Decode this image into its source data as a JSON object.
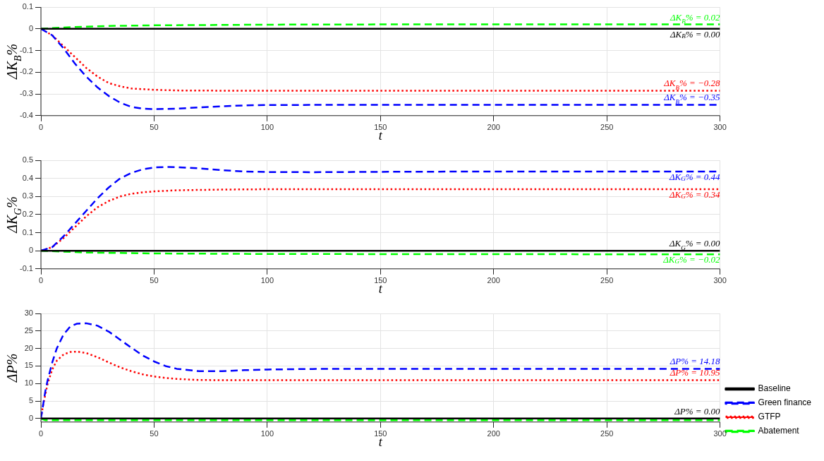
{
  "chart_data": [
    {
      "type": "line",
      "xlabel": "t",
      "ylabel": "ΔK$_{B}$%",
      "xlim": [
        0,
        300
      ],
      "xticks": [
        0,
        50,
        100,
        150,
        200,
        250,
        300
      ],
      "ylim": [
        -0.4,
        0.1
      ],
      "yticks": [
        -0.4,
        -0.3,
        -0.2,
        -0.1,
        0,
        0.1
      ],
      "grid": true,
      "legend": false,
      "series": [
        {
          "color": "#000000",
          "line_style": "solid",
          "x": [
            0,
            300
          ],
          "values": [
            0,
            0
          ]
        },
        {
          "color": "#0000ff",
          "line_style": "dashed",
          "x": [
            0,
            5,
            10,
            15,
            20,
            25,
            30,
            35,
            40,
            45,
            50,
            60,
            70,
            80,
            90,
            100,
            150,
            300
          ],
          "values": [
            0,
            -0.03,
            -0.09,
            -0.16,
            -0.22,
            -0.27,
            -0.31,
            -0.34,
            -0.36,
            -0.368,
            -0.37,
            -0.368,
            -0.362,
            -0.357,
            -0.353,
            -0.351,
            -0.35,
            -0.35
          ]
        },
        {
          "color": "#ff0000",
          "line_style": "dotted",
          "x": [
            0,
            5,
            10,
            15,
            20,
            25,
            30,
            35,
            40,
            50,
            60,
            80,
            100,
            300
          ],
          "values": [
            0,
            -0.03,
            -0.08,
            -0.13,
            -0.18,
            -0.22,
            -0.25,
            -0.265,
            -0.275,
            -0.281,
            -0.284,
            -0.285,
            -0.285,
            -0.285
          ]
        },
        {
          "color": "#00ff00",
          "line_style": "dashed",
          "x": [
            0,
            10,
            20,
            30,
            50,
            100,
            150,
            300
          ],
          "values": [
            0,
            0.006,
            0.01,
            0.013,
            0.016,
            0.019,
            0.02,
            0.02
          ]
        }
      ],
      "annotations": [
        {
          "text": "ΔK$_{B}$% = 0.02",
          "y": 0.02
        },
        {
          "text": "ΔK$_{B}$% = 0.00",
          "y": 0
        },
        {
          "text": "ΔK$_{B}$% = −0.28",
          "y": -0.285
        },
        {
          "text": "ΔK$_{B}$% = −0.35",
          "y": -0.35
        }
      ]
    },
    {
      "type": "line",
      "xlabel": "t",
      "ylabel": "ΔK$_{G}$%",
      "xlim": [
        0,
        300
      ],
      "xticks": [
        0,
        50,
        100,
        150,
        200,
        250,
        300
      ],
      "ylim": [
        -0.1,
        0.5
      ],
      "yticks": [
        -0.1,
        0,
        0.1,
        0.2,
        0.3,
        0.4,
        0.5
      ],
      "grid": true,
      "legend": false,
      "series": [
        {
          "color": "#000000",
          "line_style": "solid",
          "x": [
            0,
            300
          ],
          "values": [
            0,
            0
          ]
        },
        {
          "color": "#0000ff",
          "line_style": "dashed",
          "x": [
            0,
            5,
            10,
            15,
            20,
            25,
            30,
            35,
            40,
            45,
            50,
            55,
            60,
            70,
            80,
            90,
            100,
            120,
            150,
            200,
            300
          ],
          "values": [
            0,
            0.02,
            0.08,
            0.15,
            0.22,
            0.29,
            0.35,
            0.4,
            0.43,
            0.45,
            0.46,
            0.463,
            0.462,
            0.455,
            0.445,
            0.438,
            0.435,
            0.434,
            0.436,
            0.438,
            0.438
          ]
        },
        {
          "color": "#ff0000",
          "line_style": "dotted",
          "x": [
            0,
            5,
            10,
            15,
            20,
            25,
            30,
            35,
            40,
            45,
            50,
            60,
            80,
            100,
            300
          ],
          "values": [
            0,
            0.02,
            0.07,
            0.13,
            0.19,
            0.24,
            0.275,
            0.3,
            0.315,
            0.323,
            0.328,
            0.334,
            0.338,
            0.34,
            0.34
          ]
        },
        {
          "color": "#00ff00",
          "line_style": "dashed",
          "x": [
            0,
            20,
            50,
            100,
            300
          ],
          "values": [
            0,
            -0.01,
            -0.015,
            -0.018,
            -0.02
          ]
        }
      ],
      "annotations": [
        {
          "text": "ΔK$_{G}$% = 0.44",
          "y": 0.438
        },
        {
          "text": "ΔK$_{G}$% = 0.34",
          "y": 0.34
        },
        {
          "text": "ΔK$_{G}$% = 0.00",
          "y": 0
        },
        {
          "text": "ΔK$_{G}$% = −0.02",
          "y": -0.02
        }
      ]
    },
    {
      "type": "line",
      "xlabel": "t",
      "ylabel": "ΔP%",
      "xlim": [
        0,
        300
      ],
      "xticks": [
        0,
        50,
        100,
        150,
        200,
        250,
        300
      ],
      "ylim": [
        -1,
        30
      ],
      "yticks": [
        0,
        5,
        10,
        15,
        20,
        25,
        30
      ],
      "grid": true,
      "legend": "bottom right",
      "series": [
        {
          "name": "Baseline",
          "color": "#000000",
          "line_style": "solid",
          "x": [
            0,
            300
          ],
          "values": [
            0,
            0
          ]
        },
        {
          "name": "Green finance",
          "color": "#0000ff",
          "line_style": "dashed",
          "x": [
            0,
            1,
            2,
            3,
            5,
            7,
            10,
            13,
            16,
            20,
            25,
            30,
            35,
            40,
            45,
            50,
            55,
            60,
            70,
            80,
            90,
            100,
            120,
            150,
            300
          ],
          "values": [
            0,
            4,
            8,
            11,
            16,
            20,
            24,
            26.3,
            27.1,
            27.2,
            26.5,
            24.8,
            22.5,
            20.2,
            18,
            16.3,
            15,
            14.2,
            13.5,
            13.5,
            13.8,
            14,
            14.15,
            14.2,
            14.18
          ]
        },
        {
          "name": "GTFP",
          "color": "#ff0000",
          "line_style": "dotted",
          "x": [
            0,
            1,
            2,
            3,
            5,
            7,
            10,
            13,
            16,
            20,
            25,
            30,
            35,
            40,
            45,
            50,
            55,
            60,
            70,
            80,
            100,
            300
          ],
          "values": [
            0,
            4,
            7,
            10,
            14,
            16.5,
            18.3,
            19,
            19.1,
            18.7,
            17.5,
            16,
            14.6,
            13.5,
            12.6,
            12,
            11.6,
            11.3,
            11,
            10.95,
            10.95,
            10.95
          ]
        },
        {
          "name": "Abatement",
          "color": "#00ff00",
          "line_style": "dashed",
          "x": [
            0,
            2,
            300
          ],
          "values": [
            0,
            -0.5,
            -0.5
          ]
        }
      ],
      "annotations": [
        {
          "text": "ΔP% = 14.18",
          "y": 14.18
        },
        {
          "text": "ΔP% = 10.95",
          "y": 10.95
        },
        {
          "text": "ΔP% = 0.00",
          "y": 0
        }
      ]
    }
  ]
}
